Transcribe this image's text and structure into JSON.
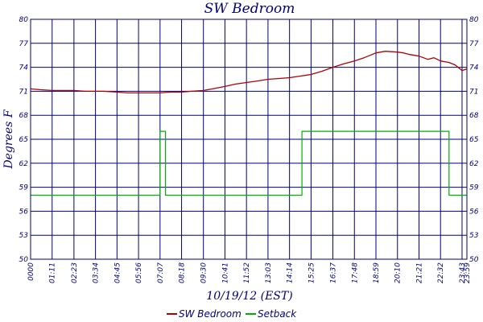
{
  "chart_data": {
    "type": "line",
    "title": "SW Bedroom",
    "xlabel": "10/19/12 (EST)",
    "ylabel": "Degrees F",
    "ylim": [
      50,
      80
    ],
    "yticks": [
      80,
      77,
      74,
      71,
      68,
      65,
      62,
      59,
      56,
      53,
      50
    ],
    "xlim": [
      "00:00",
      "23:59"
    ],
    "xticks": [
      "0000",
      "01:11",
      "02:23",
      "03:34",
      "04:45",
      "05:56",
      "07:07",
      "08:18",
      "09:30",
      "10:41",
      "11:52",
      "13:03",
      "14:14",
      "15:25",
      "16:37",
      "17:48",
      "18:59",
      "20:10",
      "21:21",
      "22:32",
      "23:43",
      "23:59"
    ],
    "grid": true,
    "legend": "bottom",
    "series": [
      {
        "name": "SW Bedroom",
        "color": "#b00000",
        "x": [
          "00:00",
          "00:30",
          "01:11",
          "02:00",
          "02:23",
          "03:00",
          "03:34",
          "04:00",
          "04:45",
          "05:20",
          "05:56",
          "06:30",
          "07:07",
          "07:40",
          "08:18",
          "08:50",
          "09:30",
          "10:00",
          "10:41",
          "11:15",
          "11:52",
          "12:30",
          "13:03",
          "13:40",
          "14:14",
          "14:50",
          "15:25",
          "16:00",
          "16:37",
          "17:10",
          "17:48",
          "18:20",
          "18:40",
          "18:59",
          "19:30",
          "20:10",
          "20:30",
          "20:50",
          "21:21",
          "21:50",
          "22:10",
          "22:32",
          "23:00",
          "23:20",
          "23:43",
          "23:59"
        ],
        "y": [
          71.3,
          71.2,
          71.1,
          71.1,
          71.1,
          71.0,
          71.0,
          71.0,
          70.9,
          70.8,
          70.8,
          70.8,
          70.8,
          70.9,
          70.9,
          71.0,
          71.1,
          71.3,
          71.6,
          71.9,
          72.1,
          72.3,
          72.5,
          72.6,
          72.7,
          72.9,
          73.1,
          73.5,
          74.0,
          74.4,
          74.8,
          75.2,
          75.5,
          75.8,
          76.0,
          75.9,
          75.8,
          75.6,
          75.4,
          75.0,
          75.2,
          74.8,
          74.6,
          74.3,
          73.6,
          73.8
        ]
      },
      {
        "name": "Setback",
        "color": "#00b000",
        "x": [
          "00:00",
          "07:07",
          "07:07",
          "07:25",
          "07:25",
          "14:55",
          "14:55",
          "23:00",
          "23:00",
          "23:59"
        ],
        "y": [
          58,
          58,
          66,
          66,
          58,
          58,
          66,
          66,
          58,
          58
        ]
      }
    ]
  }
}
